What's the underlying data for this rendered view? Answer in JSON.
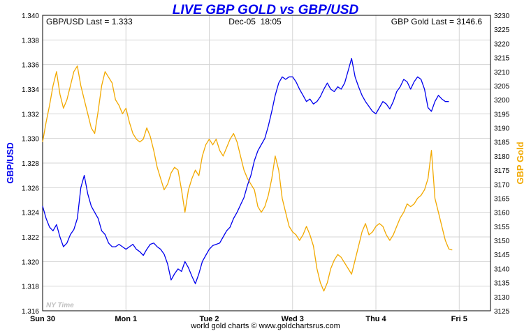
{
  "chart_data": {
    "type": "line",
    "title": "LIVE GBP GOLD vs GBP/USD",
    "header": {
      "left": "GBP/USD Last = 1.333",
      "center": "Dec-05  18:05",
      "right": "GBP Gold Last = 3146.6"
    },
    "left_axis": {
      "label": "GBP/USD",
      "range": [
        1.316,
        1.34
      ],
      "ticks": [
        "1.316",
        "1.318",
        "1.320",
        "1.322",
        "1.324",
        "1.326",
        "1.328",
        "1.330",
        "1.332",
        "1.334",
        "1.336",
        "1.338",
        "1.340"
      ]
    },
    "right_axis": {
      "label": "GBP Gold",
      "range": [
        3125,
        3230
      ],
      "ticks": [
        "3125",
        "3130",
        "3135",
        "3140",
        "3145",
        "3150",
        "3155",
        "3160",
        "3165",
        "3170",
        "3175",
        "3180",
        "3185",
        "3190",
        "3195",
        "3200",
        "3205",
        "3210",
        "3215",
        "3220",
        "3225",
        "3230"
      ]
    },
    "x_axis": {
      "range": [
        0,
        129
      ],
      "unit": "hours from Sun 30 00:00",
      "ticks": [
        {
          "label": "Sun 30",
          "x": 0
        },
        {
          "label": "Mon 1",
          "x": 24
        },
        {
          "label": "Tue 2",
          "x": 48
        },
        {
          "label": "Wed 3",
          "x": 72
        },
        {
          "label": "Thu 4",
          "x": 96
        },
        {
          "label": "Fri 5",
          "x": 120
        }
      ]
    },
    "watermark": "NY Time",
    "footer": "world gold charts © www.goldchartsrus.com",
    "grid": true,
    "series": [
      {
        "name": "GBP/USD",
        "axis": "left",
        "color": "#0000ee",
        "points": [
          [
            0,
            1.3245
          ],
          [
            1,
            1.3235
          ],
          [
            2,
            1.3228
          ],
          [
            3,
            1.3225
          ],
          [
            4,
            1.323
          ],
          [
            5,
            1.322
          ],
          [
            6,
            1.3212
          ],
          [
            7,
            1.3215
          ],
          [
            8,
            1.3222
          ],
          [
            9,
            1.3226
          ],
          [
            10,
            1.3235
          ],
          [
            11,
            1.326
          ],
          [
            12,
            1.327
          ],
          [
            13,
            1.3255
          ],
          [
            14,
            1.3245
          ],
          [
            15,
            1.324
          ],
          [
            16,
            1.3235
          ],
          [
            17,
            1.3225
          ],
          [
            18,
            1.3222
          ],
          [
            19,
            1.3215
          ],
          [
            20,
            1.3212
          ],
          [
            21,
            1.3212
          ],
          [
            22,
            1.3214
          ],
          [
            23,
            1.3212
          ],
          [
            24,
            1.321
          ],
          [
            25,
            1.3212
          ],
          [
            26,
            1.3214
          ],
          [
            27,
            1.321
          ],
          [
            28,
            1.3208
          ],
          [
            29,
            1.3205
          ],
          [
            30,
            1.321
          ],
          [
            31,
            1.3214
          ],
          [
            32,
            1.3215
          ],
          [
            33,
            1.3212
          ],
          [
            34,
            1.321
          ],
          [
            35,
            1.3206
          ],
          [
            36,
            1.3198
          ],
          [
            37,
            1.3185
          ],
          [
            38,
            1.319
          ],
          [
            39,
            1.3194
          ],
          [
            40,
            1.3192
          ],
          [
            41,
            1.32
          ],
          [
            42,
            1.3195
          ],
          [
            43,
            1.3188
          ],
          [
            44,
            1.3182
          ],
          [
            45,
            1.319
          ],
          [
            46,
            1.32
          ],
          [
            47,
            1.3205
          ],
          [
            48,
            1.321
          ],
          [
            49,
            1.3213
          ],
          [
            50,
            1.3214
          ],
          [
            51,
            1.3215
          ],
          [
            52,
            1.322
          ],
          [
            53,
            1.3225
          ],
          [
            54,
            1.3228
          ],
          [
            55,
            1.3235
          ],
          [
            56,
            1.324
          ],
          [
            57,
            1.3246
          ],
          [
            58,
            1.3252
          ],
          [
            59,
            1.3262
          ],
          [
            60,
            1.327
          ],
          [
            61,
            1.3282
          ],
          [
            62,
            1.329
          ],
          [
            63,
            1.3295
          ],
          [
            64,
            1.33
          ],
          [
            65,
            1.331
          ],
          [
            66,
            1.3322
          ],
          [
            67,
            1.3335
          ],
          [
            68,
            1.3345
          ],
          [
            69,
            1.335
          ],
          [
            70,
            1.3348
          ],
          [
            71,
            1.335
          ],
          [
            72,
            1.335
          ],
          [
            73,
            1.3346
          ],
          [
            74,
            1.334
          ],
          [
            75,
            1.3335
          ],
          [
            76,
            1.333
          ],
          [
            77,
            1.3332
          ],
          [
            78,
            1.3328
          ],
          [
            79,
            1.333
          ],
          [
            80,
            1.3334
          ],
          [
            81,
            1.334
          ],
          [
            82,
            1.3345
          ],
          [
            83,
            1.334
          ],
          [
            84,
            1.3338
          ],
          [
            85,
            1.3342
          ],
          [
            86,
            1.334
          ],
          [
            87,
            1.3345
          ],
          [
            88,
            1.3355
          ],
          [
            89,
            1.3365
          ],
          [
            90,
            1.335
          ],
          [
            91,
            1.3342
          ],
          [
            92,
            1.3335
          ],
          [
            93,
            1.333
          ],
          [
            94,
            1.3326
          ],
          [
            95,
            1.3322
          ],
          [
            96,
            1.332
          ],
          [
            97,
            1.3325
          ],
          [
            98,
            1.333
          ],
          [
            99,
            1.3328
          ],
          [
            100,
            1.3324
          ],
          [
            101,
            1.333
          ],
          [
            102,
            1.3338
          ],
          [
            103,
            1.3342
          ],
          [
            104,
            1.3348
          ],
          [
            105,
            1.3346
          ],
          [
            106,
            1.334
          ],
          [
            107,
            1.3346
          ],
          [
            108,
            1.335
          ],
          [
            109,
            1.3348
          ],
          [
            110,
            1.334
          ],
          [
            111,
            1.3325
          ],
          [
            112,
            1.3322
          ],
          [
            113,
            1.333
          ],
          [
            114,
            1.3335
          ],
          [
            115,
            1.3332
          ],
          [
            116,
            1.333
          ],
          [
            117,
            1.333
          ]
        ]
      },
      {
        "name": "GBP Gold",
        "axis": "right",
        "color": "#f2a900",
        "points": [
          [
            0,
            3185
          ],
          [
            1,
            3192
          ],
          [
            2,
            3198
          ],
          [
            3,
            3205
          ],
          [
            4,
            3210
          ],
          [
            5,
            3202
          ],
          [
            6,
            3197
          ],
          [
            7,
            3200
          ],
          [
            8,
            3205
          ],
          [
            9,
            3210
          ],
          [
            10,
            3212
          ],
          [
            11,
            3205
          ],
          [
            12,
            3200
          ],
          [
            13,
            3195
          ],
          [
            14,
            3190
          ],
          [
            15,
            3188
          ],
          [
            16,
            3196
          ],
          [
            17,
            3205
          ],
          [
            18,
            3210
          ],
          [
            19,
            3208
          ],
          [
            20,
            3206
          ],
          [
            21,
            3200
          ],
          [
            22,
            3198
          ],
          [
            23,
            3195
          ],
          [
            24,
            3197
          ],
          [
            25,
            3192
          ],
          [
            26,
            3188
          ],
          [
            27,
            3186
          ],
          [
            28,
            3185
          ],
          [
            29,
            3186
          ],
          [
            30,
            3190
          ],
          [
            31,
            3187
          ],
          [
            32,
            3182
          ],
          [
            33,
            3176
          ],
          [
            34,
            3172
          ],
          [
            35,
            3168
          ],
          [
            36,
            3170
          ],
          [
            37,
            3174
          ],
          [
            38,
            3176
          ],
          [
            39,
            3175
          ],
          [
            40,
            3168
          ],
          [
            41,
            3160
          ],
          [
            42,
            3168
          ],
          [
            43,
            3172
          ],
          [
            44,
            3175
          ],
          [
            45,
            3173
          ],
          [
            46,
            3180
          ],
          [
            47,
            3184
          ],
          [
            48,
            3186
          ],
          [
            49,
            3184
          ],
          [
            50,
            3186
          ],
          [
            51,
            3182
          ],
          [
            52,
            3180
          ],
          [
            53,
            3183
          ],
          [
            54,
            3186
          ],
          [
            55,
            3188
          ],
          [
            56,
            3185
          ],
          [
            57,
            3180
          ],
          [
            58,
            3175
          ],
          [
            59,
            3172
          ],
          [
            60,
            3170
          ],
          [
            61,
            3168
          ],
          [
            62,
            3162
          ],
          [
            63,
            3160
          ],
          [
            64,
            3162
          ],
          [
            65,
            3166
          ],
          [
            66,
            3172
          ],
          [
            67,
            3180
          ],
          [
            68,
            3175
          ],
          [
            69,
            3165
          ],
          [
            70,
            3160
          ],
          [
            71,
            3155
          ],
          [
            72,
            3153
          ],
          [
            73,
            3152
          ],
          [
            74,
            3150
          ],
          [
            75,
            3152
          ],
          [
            76,
            3155
          ],
          [
            77,
            3152
          ],
          [
            78,
            3148
          ],
          [
            79,
            3140
          ],
          [
            80,
            3135
          ],
          [
            81,
            3132
          ],
          [
            82,
            3135
          ],
          [
            83,
            3140
          ],
          [
            84,
            3143
          ],
          [
            85,
            3145
          ],
          [
            86,
            3144
          ],
          [
            87,
            3142
          ],
          [
            88,
            3140
          ],
          [
            89,
            3138
          ],
          [
            90,
            3143
          ],
          [
            91,
            3148
          ],
          [
            92,
            3153
          ],
          [
            93,
            3156
          ],
          [
            94,
            3152
          ],
          [
            95,
            3153
          ],
          [
            96,
            3155
          ],
          [
            97,
            3156
          ],
          [
            98,
            3155
          ],
          [
            99,
            3152
          ],
          [
            100,
            3150
          ],
          [
            101,
            3152
          ],
          [
            102,
            3155
          ],
          [
            103,
            3158
          ],
          [
            104,
            3160
          ],
          [
            105,
            3163
          ],
          [
            106,
            3162
          ],
          [
            107,
            3163
          ],
          [
            108,
            3165
          ],
          [
            109,
            3166
          ],
          [
            110,
            3168
          ],
          [
            111,
            3172
          ],
          [
            112,
            3182
          ],
          [
            113,
            3165
          ],
          [
            114,
            3160
          ],
          [
            115,
            3155
          ],
          [
            116,
            3150
          ],
          [
            117,
            3147
          ],
          [
            118,
            3146.6
          ]
        ]
      }
    ]
  }
}
